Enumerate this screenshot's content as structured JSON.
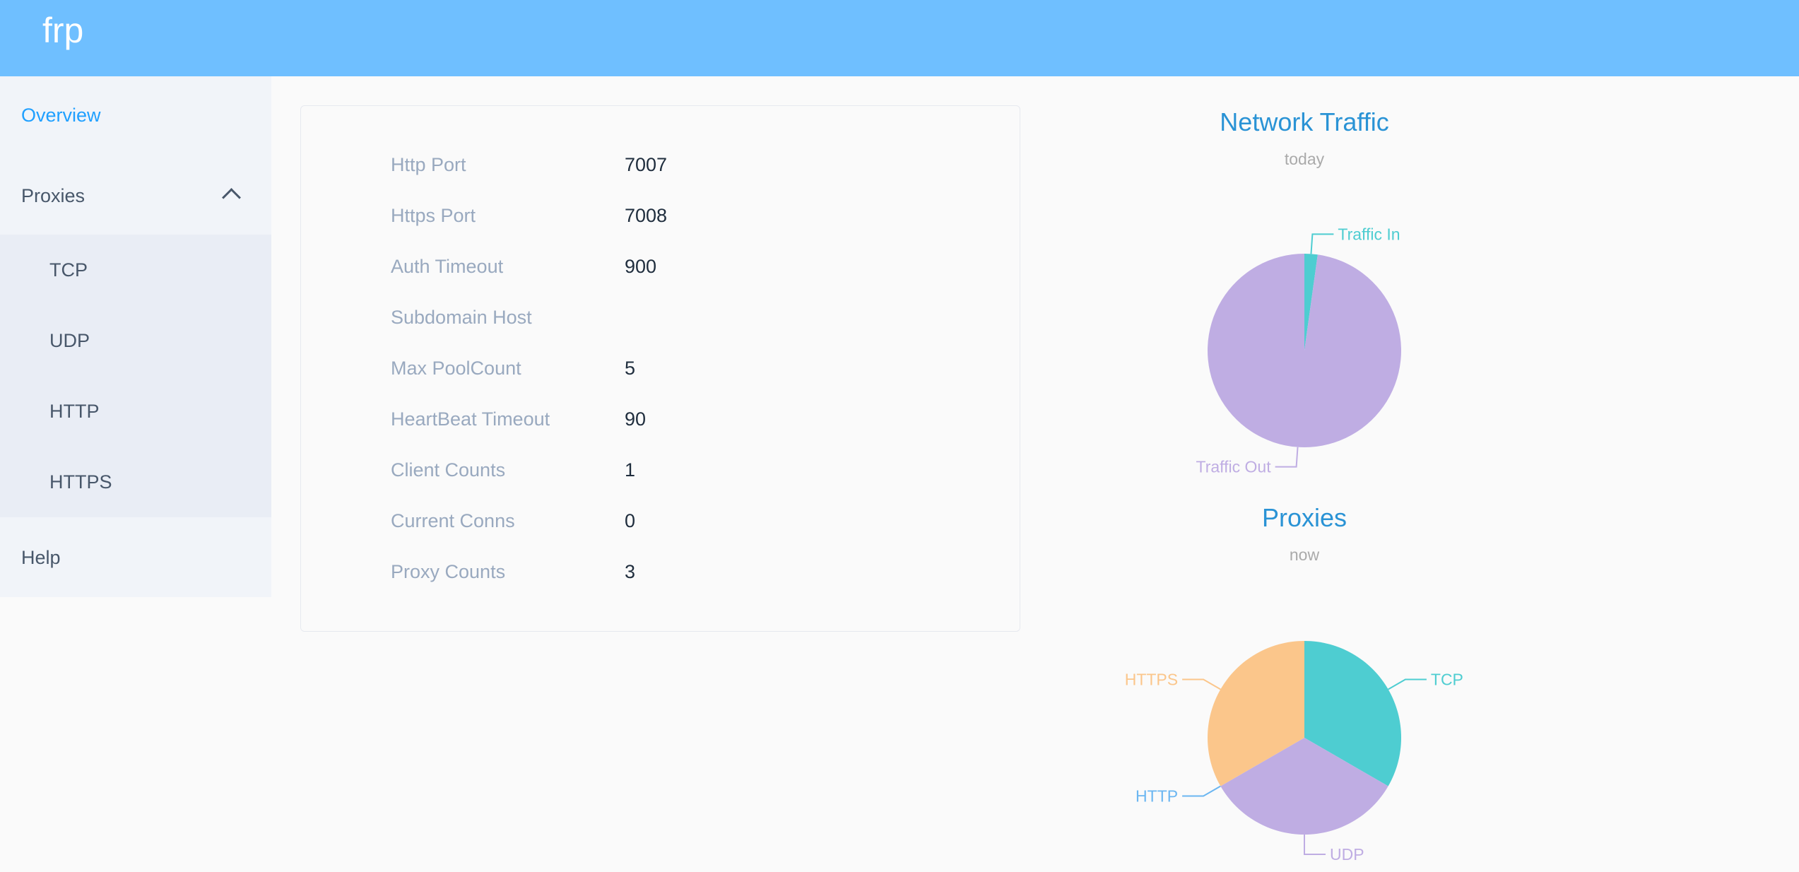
{
  "header": {
    "logo": "frp",
    "color": "#6fbfff"
  },
  "sidebar": {
    "items": [
      {
        "label": "Overview",
        "active": true
      },
      {
        "label": "Proxies",
        "expanded": true,
        "icon": "chevron-up-icon",
        "children": [
          {
            "label": "TCP"
          },
          {
            "label": "UDP"
          },
          {
            "label": "HTTP"
          },
          {
            "label": "HTTPS"
          }
        ]
      },
      {
        "label": "Help"
      }
    ]
  },
  "server_info": [
    {
      "label": "Http Port",
      "value": "7007"
    },
    {
      "label": "Https Port",
      "value": "7008"
    },
    {
      "label": "Auth Timeout",
      "value": "900"
    },
    {
      "label": "Subdomain Host",
      "value": ""
    },
    {
      "label": "Max PoolCount",
      "value": "5"
    },
    {
      "label": "HeartBeat Timeout",
      "value": "90"
    },
    {
      "label": "Client Counts",
      "value": "1"
    },
    {
      "label": "Current Conns",
      "value": "0"
    },
    {
      "label": "Proxy Counts",
      "value": "3"
    }
  ],
  "chart_data": [
    {
      "type": "pie",
      "title": "Network Traffic",
      "subtitle": "today",
      "categories": [
        "Traffic In",
        "Traffic Out"
      ],
      "values": [
        2.2,
        97.8
      ],
      "colors": [
        "#4ecdd1",
        "#bfade3"
      ]
    },
    {
      "type": "pie",
      "title": "Proxies",
      "subtitle": "now",
      "categories": [
        "TCP",
        "UDP",
        "HTTP",
        "HTTPS"
      ],
      "values": [
        1,
        1,
        0,
        1
      ],
      "colors": [
        "#4ecdd1",
        "#bfade3",
        "#6bb6f1",
        "#fbc68b"
      ]
    }
  ]
}
